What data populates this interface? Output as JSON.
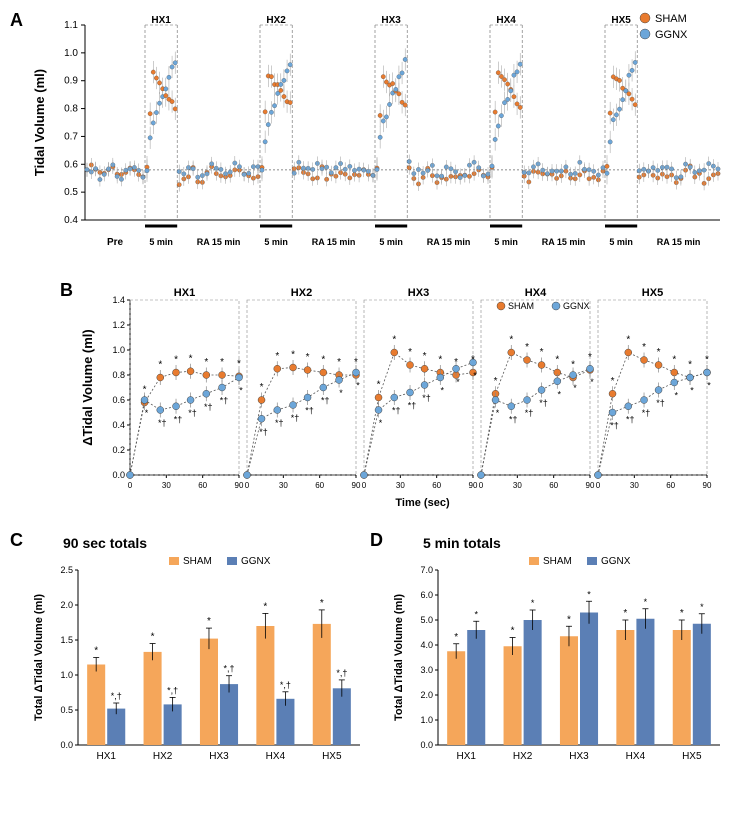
{
  "colors": {
    "sham": "#e87b2f",
    "ggnx": "#6ca6d9",
    "sham_bar": "#f5a65a",
    "ggnx_bar": "#5b7fb5",
    "axis": "#000000",
    "grid": "#888888",
    "error": "#888888"
  },
  "panelA": {
    "label": "A",
    "ylabel": "Tidal Volume (ml)",
    "ylim": [
      0.4,
      1.1
    ],
    "yticks": [
      0.4,
      0.5,
      0.6,
      0.7,
      0.8,
      0.9,
      1.0,
      1.1
    ],
    "baseline": 0.58,
    "episodes": [
      "HX1",
      "HX2",
      "HX3",
      "HX4",
      "HX5"
    ],
    "pre_label": "Pre",
    "hx_duration_label": "5 min",
    "ra_label": "RA 15 min",
    "legend": [
      {
        "label": "SHAM",
        "color": "#e87b2f"
      },
      {
        "label": "GGNX",
        "color": "#6ca6d9"
      }
    ]
  },
  "panelB": {
    "label": "B",
    "ylabel": "ΔTidal Volume (ml)",
    "ylim": [
      0.0,
      1.4
    ],
    "yticks": [
      0.0,
      0.2,
      0.4,
      0.6,
      0.8,
      1.0,
      1.2,
      1.4
    ],
    "xlabel": "Time (sec)",
    "xticks": [
      0,
      30,
      60,
      90
    ],
    "episodes": [
      "HX1",
      "HX2",
      "HX3",
      "HX4",
      "HX5"
    ],
    "legend": [
      {
        "label": "SHAM",
        "color": "#e87b2f"
      },
      {
        "label": "GGNX",
        "color": "#6ca6d9"
      }
    ],
    "data": {
      "HX1": {
        "sham": [
          0.0,
          0.58,
          0.78,
          0.82,
          0.83,
          0.8,
          0.8,
          0.79
        ],
        "ggnx": [
          0.0,
          0.6,
          0.52,
          0.55,
          0.6,
          0.65,
          0.7,
          0.78
        ]
      },
      "HX2": {
        "sham": [
          0.0,
          0.6,
          0.85,
          0.86,
          0.84,
          0.82,
          0.8,
          0.8
        ],
        "ggnx": [
          0.0,
          0.45,
          0.52,
          0.56,
          0.62,
          0.7,
          0.76,
          0.82
        ]
      },
      "HX3": {
        "sham": [
          0.0,
          0.62,
          0.98,
          0.88,
          0.85,
          0.82,
          0.8,
          0.82
        ],
        "ggnx": [
          0.0,
          0.52,
          0.62,
          0.66,
          0.72,
          0.78,
          0.85,
          0.9
        ]
      },
      "HX4": {
        "sham": [
          0.0,
          0.65,
          0.98,
          0.92,
          0.88,
          0.82,
          0.78,
          0.84
        ],
        "ggnx": [
          0.0,
          0.6,
          0.55,
          0.6,
          0.68,
          0.75,
          0.8,
          0.85
        ]
      },
      "HX5": {
        "sham": [
          0.0,
          0.65,
          0.98,
          0.92,
          0.88,
          0.82,
          0.78,
          0.82
        ],
        "ggnx": [
          0.0,
          0.5,
          0.55,
          0.6,
          0.68,
          0.74,
          0.78,
          0.82
        ]
      }
    }
  },
  "panelC": {
    "label": "C",
    "title": "90 sec totals",
    "ylabel": "Total ΔTidal Volume (ml)",
    "ylim": [
      0.0,
      2.5
    ],
    "yticks": [
      0.0,
      0.5,
      1.0,
      1.5,
      2.0,
      2.5
    ],
    "categories": [
      "HX1",
      "HX2",
      "HX3",
      "HX4",
      "HX5"
    ],
    "sham": [
      1.15,
      1.33,
      1.52,
      1.7,
      1.73
    ],
    "ggnx": [
      0.52,
      0.58,
      0.87,
      0.66,
      0.81
    ],
    "sham_err": [
      0.1,
      0.12,
      0.15,
      0.18,
      0.2
    ],
    "ggnx_err": [
      0.08,
      0.1,
      0.12,
      0.1,
      0.12
    ],
    "sham_sig": [
      "*",
      "*",
      "*",
      "*",
      "*"
    ],
    "ggnx_sig": [
      "*,†",
      "*,†",
      "*,†",
      "*,†",
      "*,†"
    ]
  },
  "panelD": {
    "label": "D",
    "title": "5 min totals",
    "ylabel": "Total ΔTidal Volume (ml)",
    "ylim": [
      0.0,
      7.0
    ],
    "yticks": [
      0.0,
      1.0,
      2.0,
      3.0,
      4.0,
      5.0,
      6.0,
      7.0
    ],
    "categories": [
      "HX1",
      "HX2",
      "HX3",
      "HX4",
      "HX5"
    ],
    "sham": [
      3.75,
      3.95,
      4.35,
      4.6,
      4.6
    ],
    "ggnx": [
      4.6,
      5.0,
      5.3,
      5.05,
      4.85
    ],
    "sham_err": [
      0.3,
      0.35,
      0.4,
      0.4,
      0.4
    ],
    "ggnx_err": [
      0.35,
      0.4,
      0.45,
      0.4,
      0.4
    ],
    "sham_sig": [
      "*",
      "*",
      "*",
      "*",
      "*"
    ],
    "ggnx_sig": [
      "*",
      "*",
      "*",
      "*",
      "*"
    ]
  }
}
